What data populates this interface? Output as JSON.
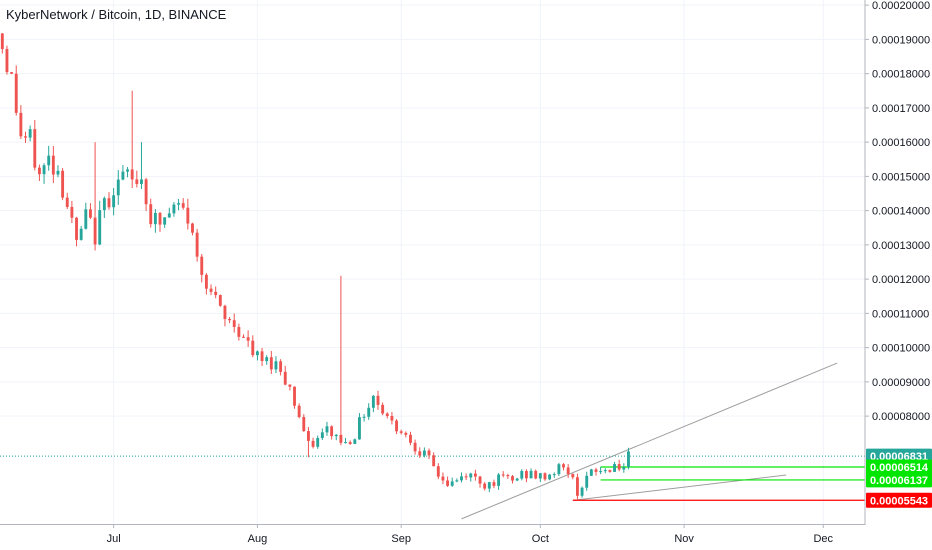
{
  "chart_data": {
    "type": "candlestick",
    "title": "KyberNetwork / Bitcoin, 1D, BINANCE",
    "x_axis": {
      "ticks": [
        {
          "label": "Jul",
          "day": 0
        },
        {
          "label": "Aug",
          "day": 31
        },
        {
          "label": "Sep",
          "day": 62
        },
        {
          "label": "Oct",
          "day": 92
        },
        {
          "label": "Nov",
          "day": 123
        },
        {
          "label": "Dec",
          "day": 153
        }
      ],
      "range_days": [
        -24.5,
        162
      ]
    },
    "y_axis": {
      "ticks": [
        "0.00020000",
        "0.00019000",
        "0.00018000",
        "0.00017000",
        "0.00016000",
        "0.00015000",
        "0.00014000",
        "0.00013000",
        "0.00012000",
        "0.00011000",
        "0.00010000",
        "0.00009000",
        "0.00008000"
      ],
      "range": [
        4.85e-05,
        0.0002015
      ],
      "grid": true
    },
    "ohlc_anchors": [
      {
        "day": -24,
        "close": 0.000188
      },
      {
        "day": -22,
        "close": 0.000178
      },
      {
        "day": -20,
        "close": 0.000162
      },
      {
        "day": -18,
        "close": 0.00016
      },
      {
        "day": -16,
        "close": 0.00015
      },
      {
        "day": -14,
        "close": 0.000155
      },
      {
        "day": -12,
        "close": 0.000152
      },
      {
        "day": -10,
        "close": 0.000142
      },
      {
        "day": -8,
        "close": 0.00013
      },
      {
        "day": -6,
        "close": 0.000138
      },
      {
        "day": -4,
        "close": 0.000133
      },
      {
        "day": -2,
        "close": 0.000142
      },
      {
        "day": 0,
        "close": 0.000147
      },
      {
        "day": 2,
        "close": 0.00015
      },
      {
        "day": 4,
        "close": 0.000148
      },
      {
        "day": 6,
        "close": 0.00015
      },
      {
        "day": 8,
        "close": 0.000138
      },
      {
        "day": 10,
        "close": 0.000136
      },
      {
        "day": 12,
        "close": 0.000139
      },
      {
        "day": 14,
        "close": 0.000141
      },
      {
        "day": 16,
        "close": 0.000138
      },
      {
        "day": 18,
        "close": 0.000126
      },
      {
        "day": 20,
        "close": 0.00012
      },
      {
        "day": 22,
        "close": 0.000113
      },
      {
        "day": 24,
        "close": 0.000108
      },
      {
        "day": 26,
        "close": 0.000107
      },
      {
        "day": 28,
        "close": 0.000103
      },
      {
        "day": 30,
        "close": 9.8e-05
      },
      {
        "day": 32,
        "close": 9.6e-05
      },
      {
        "day": 34,
        "close": 9.6e-05
      },
      {
        "day": 36,
        "close": 9.4e-05
      },
      {
        "day": 38,
        "close": 8.8e-05
      },
      {
        "day": 40,
        "close": 8e-05
      },
      {
        "day": 42,
        "close": 7.1e-05
      },
      {
        "day": 44,
        "close": 7.3e-05
      },
      {
        "day": 46,
        "close": 7.6e-05
      },
      {
        "day": 48,
        "close": 7.4e-05
      },
      {
        "day": 50,
        "close": 7.2e-05
      },
      {
        "day": 52,
        "close": 7.5e-05
      },
      {
        "day": 54,
        "close": 8.1e-05
      },
      {
        "day": 56,
        "close": 8.6e-05
      },
      {
        "day": 58,
        "close": 8.2e-05
      },
      {
        "day": 60,
        "close": 7.8e-05
      },
      {
        "day": 62,
        "close": 7.6e-05
      },
      {
        "day": 64,
        "close": 7.3e-05
      },
      {
        "day": 66,
        "close": 7e-05
      },
      {
        "day": 68,
        "close": 6.7e-05
      },
      {
        "day": 70,
        "close": 6.3e-05
      },
      {
        "day": 72,
        "close": 6e-05
      },
      {
        "day": 74,
        "close": 6.1e-05
      },
      {
        "day": 76,
        "close": 6.3e-05
      },
      {
        "day": 78,
        "close": 6.2e-05
      },
      {
        "day": 80,
        "close": 6e-05
      },
      {
        "day": 82,
        "close": 6.1e-05
      },
      {
        "day": 84,
        "close": 6.2e-05
      },
      {
        "day": 86,
        "close": 6.1e-05
      },
      {
        "day": 88,
        "close": 6.3e-05
      },
      {
        "day": 90,
        "close": 6.3e-05
      },
      {
        "day": 92,
        "close": 6.2e-05
      },
      {
        "day": 94,
        "close": 6.3e-05
      },
      {
        "day": 96,
        "close": 6.5e-05
      },
      {
        "day": 98,
        "close": 6.4e-05
      },
      {
        "day": 100,
        "close": 5.8e-05
      },
      {
        "day": 102,
        "close": 6.2e-05
      },
      {
        "day": 104,
        "close": 6.4e-05
      },
      {
        "day": 106,
        "close": 6.4e-05
      },
      {
        "day": 108,
        "close": 6.6e-05
      },
      {
        "day": 110,
        "close": 6.5e-05
      },
      {
        "day": 111,
        "close": 6.8e-05
      }
    ],
    "wick_spikes": [
      {
        "day": -4,
        "high": 0.00016
      },
      {
        "day": 4,
        "high": 0.000175
      },
      {
        "day": 6,
        "high": 0.00016
      },
      {
        "day": 49,
        "high": 0.000121
      },
      {
        "day": 42,
        "low": 6.8e-05
      }
    ],
    "price_tags": [
      {
        "label": "0.00006831",
        "value": 6.831e-05,
        "color": "#26a69a"
      },
      {
        "label": "0.00006514",
        "value": 6.514e-05,
        "color": "#00e600"
      },
      {
        "label": "0.00006137",
        "value": 6.137e-05,
        "color": "#00e600"
      },
      {
        "label": "0.00005543",
        "value": 5.543e-05,
        "color": "#ff0000"
      }
    ],
    "horizontal_lines": [
      {
        "value": 6.514e-05,
        "from_day": 105,
        "color": "#00e600"
      },
      {
        "value": 6.137e-05,
        "from_day": 105,
        "color": "#00e600"
      },
      {
        "value": 5.543e-05,
        "from_day": 99,
        "color": "#ff0000"
      }
    ],
    "trend_lines": [
      {
        "from": {
          "day": 75,
          "value": 5e-05
        },
        "to": {
          "day": 156,
          "value": 9.55e-05
        },
        "color": "#9e9e9e"
      },
      {
        "from": {
          "day": 99,
          "value": 5.54e-05
        },
        "to": {
          "day": 145,
          "value": 6.28e-05
        },
        "color": "#9e9e9e"
      }
    ],
    "last_price_line": {
      "value": 6.831e-05,
      "color": "#26a69a"
    },
    "colors": {
      "up": "#26a69a",
      "down": "#ef5350",
      "grid": "#f0f3fa",
      "axis": "#b2b5be"
    }
  }
}
